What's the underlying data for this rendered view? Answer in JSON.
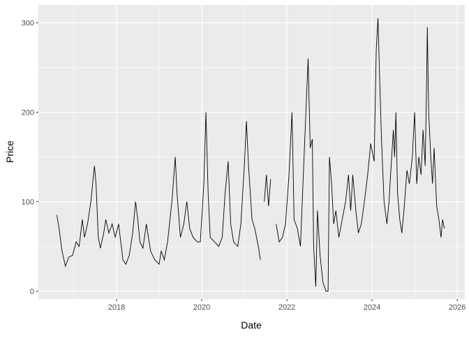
{
  "chart_data": {
    "type": "line",
    "title": "",
    "xlabel": "Date",
    "ylabel": "Price",
    "xlim": [
      "2016-03-01",
      "2026-03-07"
    ],
    "ylim": [
      -9,
      320
    ],
    "x_ticks": [
      "2018",
      "2020",
      "2022",
      "2024",
      "2026"
    ],
    "y_ticks": [
      0,
      100,
      200,
      300
    ],
    "grid": true,
    "legend": "none",
    "line_color": "#000000",
    "panel_color": "#EBEBEB",
    "series": [
      {
        "points": [
          [
            "2016-08-07",
            85
          ],
          [
            "2016-08-26",
            70
          ],
          [
            "2016-09-20",
            45
          ],
          [
            "2016-10-19",
            28
          ],
          [
            "2016-11-17",
            38
          ],
          [
            "2016-12-20",
            40
          ],
          [
            "2017-01-19",
            55
          ],
          [
            "2017-02-14",
            50
          ],
          [
            "2017-03-14",
            80
          ],
          [
            "2017-04-01",
            60
          ],
          [
            "2017-04-27",
            75
          ],
          [
            "2017-05-26",
            100
          ],
          [
            "2017-06-25",
            140
          ],
          [
            "2017-07-09",
            120
          ],
          [
            "2017-07-28",
            60
          ],
          [
            "2017-08-15",
            48
          ],
          [
            "2017-09-13",
            65
          ],
          [
            "2017-10-01",
            80
          ],
          [
            "2017-10-27",
            65
          ],
          [
            "2017-11-24",
            75
          ],
          [
            "2017-12-20",
            60
          ],
          [
            "2018-01-19",
            75
          ],
          [
            "2018-02-06",
            55
          ],
          [
            "2018-02-25",
            35
          ],
          [
            "2018-03-22",
            30
          ],
          [
            "2018-04-20",
            40
          ],
          [
            "2018-05-19",
            65
          ],
          [
            "2018-06-13",
            100
          ],
          [
            "2018-07-02",
            80
          ],
          [
            "2018-07-20",
            55
          ],
          [
            "2018-08-15",
            48
          ],
          [
            "2018-09-13",
            75
          ],
          [
            "2018-10-01",
            60
          ],
          [
            "2018-10-19",
            45
          ],
          [
            "2018-11-24",
            35
          ],
          [
            "2019-01-01",
            30
          ],
          [
            "2019-01-19",
            45
          ],
          [
            "2019-02-14",
            35
          ],
          [
            "2019-03-14",
            55
          ],
          [
            "2019-04-20",
            100
          ],
          [
            "2019-05-19",
            150
          ],
          [
            "2019-06-03",
            110
          ],
          [
            "2019-07-02",
            60
          ],
          [
            "2019-07-31",
            75
          ],
          [
            "2019-08-26",
            100
          ],
          [
            "2019-09-20",
            70
          ],
          [
            "2019-10-19",
            60
          ],
          [
            "2019-11-24",
            55
          ],
          [
            "2019-12-20",
            55
          ],
          [
            "2020-01-19",
            120
          ],
          [
            "2020-02-06",
            200
          ],
          [
            "2020-02-25",
            110
          ],
          [
            "2020-03-14",
            60
          ],
          [
            "2020-04-20",
            55
          ],
          [
            "2020-05-26",
            50
          ],
          [
            "2020-06-25",
            60
          ],
          [
            "2020-07-20",
            110
          ],
          [
            "2020-08-15",
            145
          ],
          [
            "2020-09-06",
            75
          ],
          [
            "2020-10-01",
            55
          ],
          [
            "2020-11-06",
            50
          ],
          [
            "2020-12-02",
            75
          ],
          [
            "2021-01-01",
            140
          ],
          [
            "2021-01-19",
            190
          ],
          [
            "2021-02-06",
            140
          ],
          [
            "2021-03-08",
            80
          ],
          [
            "2021-04-01",
            70
          ],
          [
            "2021-05-01",
            50
          ],
          [
            "2021-05-19",
            35
          ],
          [
            "2021-06-03",
            null
          ],
          [
            "2021-06-21",
            100
          ],
          [
            "2021-07-09",
            130
          ],
          [
            "2021-07-28",
            95
          ],
          [
            "2021-08-15",
            125
          ],
          [
            "2021-09-13",
            null
          ],
          [
            "2021-10-01",
            75
          ],
          [
            "2021-10-27",
            55
          ],
          [
            "2021-11-24",
            60
          ],
          [
            "2021-12-20",
            75
          ],
          [
            "2022-01-19",
            130
          ],
          [
            "2022-02-14",
            200
          ],
          [
            "2022-03-04",
            80
          ],
          [
            "2022-04-01",
            70
          ],
          [
            "2022-04-27",
            50
          ],
          [
            "2022-05-19",
            120
          ],
          [
            "2022-06-13",
            200
          ],
          [
            "2022-07-02",
            260
          ],
          [
            "2022-07-20",
            160
          ],
          [
            "2022-08-07",
            170
          ],
          [
            "2022-08-18",
            50
          ],
          [
            "2022-09-06",
            5
          ],
          [
            "2022-09-20",
            90
          ],
          [
            "2022-10-12",
            40
          ],
          [
            "2022-11-06",
            10
          ],
          [
            "2022-12-02",
            0
          ],
          [
            "2022-12-20",
            0
          ],
          [
            "2023-01-01",
            150
          ],
          [
            "2023-01-19",
            120
          ],
          [
            "2023-02-06",
            75
          ],
          [
            "2023-02-25",
            90
          ],
          [
            "2023-03-22",
            60
          ],
          [
            "2023-04-20",
            80
          ],
          [
            "2023-05-19",
            100
          ],
          [
            "2023-06-13",
            130
          ],
          [
            "2023-07-02",
            90
          ],
          [
            "2023-07-20",
            130
          ],
          [
            "2023-08-15",
            90
          ],
          [
            "2023-09-06",
            65
          ],
          [
            "2023-10-01",
            75
          ],
          [
            "2023-10-27",
            100
          ],
          [
            "2023-11-24",
            130
          ],
          [
            "2023-12-20",
            165
          ],
          [
            "2024-01-19",
            145
          ],
          [
            "2024-02-06",
            270
          ],
          [
            "2024-02-21",
            305
          ],
          [
            "2024-03-08",
            230
          ],
          [
            "2024-03-22",
            170
          ],
          [
            "2024-04-13",
            100
          ],
          [
            "2024-05-08",
            75
          ],
          [
            "2024-05-26",
            100
          ],
          [
            "2024-06-13",
            140
          ],
          [
            "2024-07-02",
            180
          ],
          [
            "2024-07-13",
            150
          ],
          [
            "2024-07-24",
            200
          ],
          [
            "2024-08-07",
            110
          ],
          [
            "2024-08-26",
            80
          ],
          [
            "2024-09-13",
            65
          ],
          [
            "2024-10-01",
            90
          ],
          [
            "2024-10-27",
            135
          ],
          [
            "2024-11-17",
            120
          ],
          [
            "2024-12-12",
            150
          ],
          [
            "2025-01-01",
            200
          ],
          [
            "2025-01-19",
            120
          ],
          [
            "2025-02-06",
            150
          ],
          [
            "2025-02-25",
            130
          ],
          [
            "2025-03-14",
            180
          ],
          [
            "2025-04-01",
            140
          ],
          [
            "2025-04-13",
            230
          ],
          [
            "2025-04-20",
            295
          ],
          [
            "2025-05-01",
            200
          ],
          [
            "2025-05-19",
            150
          ],
          [
            "2025-06-03",
            120
          ],
          [
            "2025-06-17",
            160
          ],
          [
            "2025-07-09",
            95
          ],
          [
            "2025-07-28",
            80
          ],
          [
            "2025-08-15",
            60
          ],
          [
            "2025-08-29",
            80
          ],
          [
            "2025-09-13",
            70
          ]
        ]
      }
    ]
  }
}
